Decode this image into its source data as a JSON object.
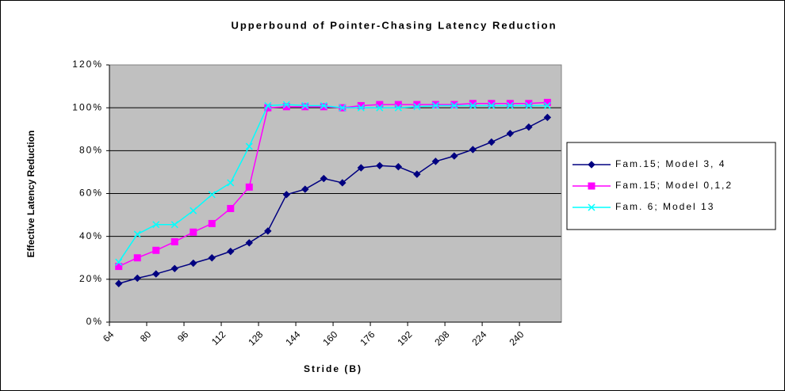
{
  "chart_data": {
    "type": "line",
    "title": "Upperbound of Pointer-Chasing Latency Reduction",
    "x_label": "Stride (B)",
    "y_label": "Effective Latency Reduction",
    "x": [
      68,
      76,
      84,
      92,
      100,
      108,
      116,
      124,
      132,
      140,
      148,
      156,
      164,
      172,
      180,
      188,
      196,
      204,
      212,
      220,
      228,
      236,
      244,
      252
    ],
    "xlim": [
      64,
      258
    ],
    "xticks": [
      64,
      80,
      96,
      112,
      128,
      144,
      160,
      176,
      192,
      208,
      224,
      240
    ],
    "ylim": [
      0,
      120
    ],
    "yticks": [
      {
        "value": 0,
        "label": "0%"
      },
      {
        "value": 20,
        "label": "20%"
      },
      {
        "value": 40,
        "label": "40%"
      },
      {
        "value": 60,
        "label": "60%"
      },
      {
        "value": 80,
        "label": "80%"
      },
      {
        "value": 100,
        "label": "100%"
      },
      {
        "value": 120,
        "label": "120%"
      }
    ],
    "grid": true,
    "legend": "right",
    "series": [
      {
        "name": "Fam.15; Model 3, 4",
        "color": "#000080",
        "marker": "diamond",
        "values": [
          18,
          20.5,
          22.5,
          25,
          27.5,
          30,
          33,
          37,
          42.5,
          59.5,
          62,
          67,
          65,
          72,
          73,
          72.5,
          69,
          75,
          77.5,
          80.5,
          84,
          88,
          91,
          95.5
        ]
      },
      {
        "name": "Fam.15; Model 0,1,2",
        "color": "#ff00ff",
        "marker": "square",
        "values": [
          26,
          30,
          33.5,
          37.5,
          42,
          46,
          53,
          63,
          100,
          100.5,
          100.5,
          100.5,
          100,
          101,
          101.5,
          101.5,
          101.5,
          101.5,
          101.5,
          102,
          102,
          102,
          102,
          102.5
        ]
      },
      {
        "name": "Fam. 6; Model 13",
        "color": "#00ffff",
        "marker": "x",
        "values": [
          28,
          41,
          45.5,
          45.5,
          52,
          59.5,
          65,
          82,
          101,
          101.5,
          101,
          101,
          100,
          100,
          100,
          100,
          100.5,
          101,
          101,
          101,
          101,
          101,
          101,
          101
        ]
      }
    ]
  }
}
